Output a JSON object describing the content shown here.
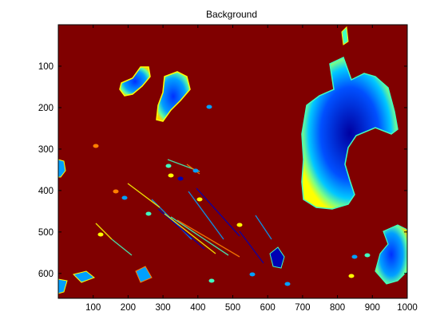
{
  "chart_data": {
    "type": "heatmap",
    "title": "Background",
    "xlabel": "",
    "ylabel": "",
    "xlim": [
      0,
      1000
    ],
    "ylim": [
      660,
      0
    ],
    "x_ticks": [
      100,
      200,
      300,
      400,
      500,
      600,
      700,
      800,
      900,
      1000
    ],
    "y_ticks": [
      100,
      200,
      300,
      400,
      500,
      600
    ],
    "grid": false,
    "colormap": "jet",
    "colors": {
      "background": "#800000",
      "low": "#0000b4",
      "mid_low": "#00a0ff",
      "mid": "#40ffc0",
      "mid_high": "#ffff00",
      "high": "#ff8000"
    }
  }
}
